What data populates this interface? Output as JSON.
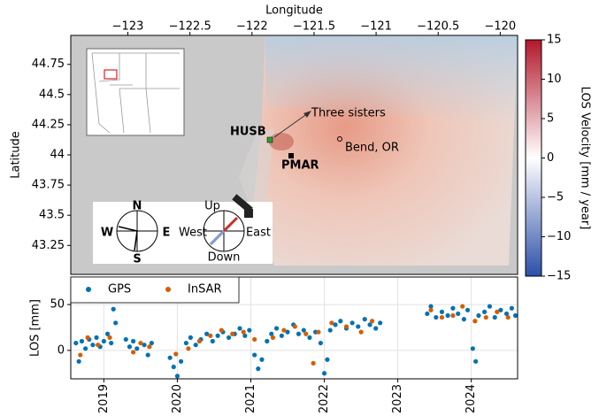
{
  "chart_data": [
    {
      "type": "map",
      "xlabel": "Longitude",
      "ylabel": "Latitude",
      "xlim": [
        -123.46,
        -119.86
      ],
      "xticks": [
        {
          "value": -123,
          "label": "−123"
        },
        {
          "value": -122.5,
          "label": "−122.5"
        },
        {
          "value": -122,
          "label": "−122"
        },
        {
          "value": -121.5,
          "label": "−121.5"
        },
        {
          "value": -121,
          "label": "−121"
        },
        {
          "value": -120.5,
          "label": "−120.5"
        },
        {
          "value": -120,
          "label": "−120"
        }
      ],
      "ylim": [
        43.01,
        44.99
      ],
      "yticks": [
        43.25,
        43.5,
        43.75,
        44,
        44.25,
        44.5,
        44.75
      ],
      "colorbar": {
        "label": "LOS Velocity [mm / year]",
        "lim": [
          -15,
          15
        ],
        "ticks": [
          {
            "value": -15,
            "label": "−15"
          },
          {
            "value": -10,
            "label": "−10"
          },
          {
            "value": -5,
            "label": "−5"
          },
          0,
          5,
          10,
          15
        ],
        "colors": [
          "#2c4fa8",
          "#ffffff",
          "#b2182b"
        ]
      },
      "annotations": [
        "HUSB",
        "PMAR",
        "Three sisters",
        "Bend, OR"
      ],
      "compass": {
        "heading_labels": [
          "N",
          "E",
          "S",
          "W"
        ],
        "look_labels": [
          "Up",
          "Down",
          "West",
          "East"
        ]
      }
    },
    {
      "type": "scatter",
      "ylabel": "LOS [mm]",
      "xlim": [
        2018.55,
        2024.63
      ],
      "xticks": [
        2019,
        2020,
        2021,
        2022,
        2023,
        2024
      ],
      "ylim": [
        -31,
        80
      ],
      "yticks": [
        0,
        50
      ],
      "grid": true,
      "legend": "upper left",
      "series": [
        {
          "name": "GPS",
          "color": "#0072b2",
          "x": [
            2018.62,
            2018.66,
            2018.7,
            2018.75,
            2018.8,
            2018.85,
            2018.9,
            2018.95,
            2019.0,
            2019.05,
            2019.1,
            2019.13,
            2019.16,
            2019.3,
            2019.35,
            2019.4,
            2019.45,
            2019.55,
            2019.6,
            2019.65,
            2019.9,
            2019.95,
            2020.0,
            2020.05,
            2020.12,
            2020.18,
            2020.25,
            2020.32,
            2020.4,
            2020.48,
            2020.55,
            2020.62,
            2020.7,
            2020.78,
            2020.85,
            2020.92,
            2020.98,
            2021.05,
            2021.1,
            2021.15,
            2021.22,
            2021.28,
            2021.35,
            2021.42,
            2021.5,
            2021.58,
            2021.65,
            2021.72,
            2021.8,
            2021.88,
            2021.95,
            2022.0,
            2022.04,
            2022.08,
            2022.15,
            2022.22,
            2022.3,
            2022.38,
            2022.46,
            2022.55,
            2022.62,
            2022.7,
            2022.76,
            2023.4,
            2023.45,
            2023.52,
            2023.6,
            2023.68,
            2023.75,
            2023.82,
            2023.9,
            2023.95,
            2024.02,
            2024.06,
            2024.1,
            2024.18,
            2024.25,
            2024.32,
            2024.4,
            2024.48,
            2024.55,
            2024.6
          ],
          "values": [
            8,
            -12,
            10,
            2,
            12,
            6,
            14,
            4,
            10,
            18,
            8,
            45,
            30,
            12,
            4,
            10,
            2,
            6,
            -5,
            8,
            -8,
            -18,
            -28,
            -12,
            8,
            14,
            6,
            12,
            18,
            10,
            16,
            20,
            14,
            18,
            24,
            16,
            22,
            -5,
            -20,
            -10,
            10,
            18,
            24,
            16,
            20,
            28,
            18,
            22,
            14,
            20,
            8,
            -25,
            -10,
            22,
            28,
            32,
            24,
            30,
            26,
            34,
            28,
            24,
            30,
            40,
            48,
            36,
            42,
            38,
            46,
            40,
            34,
            44,
            2,
            -12,
            38,
            42,
            48,
            36,
            44,
            40,
            46,
            38
          ]
        },
        {
          "name": "InSAR",
          "color": "#d55e00",
          "x": [
            2018.68,
            2018.78,
            2018.92,
            2019.08,
            2019.4,
            2019.5,
            2019.62,
            2019.98,
            2020.15,
            2020.3,
            2020.45,
            2020.6,
            2020.75,
            2020.9,
            2021.05,
            2021.3,
            2021.45,
            2021.6,
            2021.75,
            2021.85,
            2021.92,
            2022.1,
            2022.3,
            2022.5,
            2022.65,
            2023.45,
            2023.6,
            2023.75,
            2023.88,
            2024.05,
            2024.2,
            2024.35,
            2024.5
          ],
          "values": [
            -5,
            14,
            6,
            14,
            -2,
            8,
            4,
            -4,
            2,
            10,
            16,
            22,
            18,
            20,
            12,
            14,
            22,
            26,
            18,
            -14,
            20,
            30,
            26,
            20,
            32,
            44,
            36,
            38,
            48,
            32,
            36,
            42,
            36
          ]
        }
      ]
    }
  ]
}
